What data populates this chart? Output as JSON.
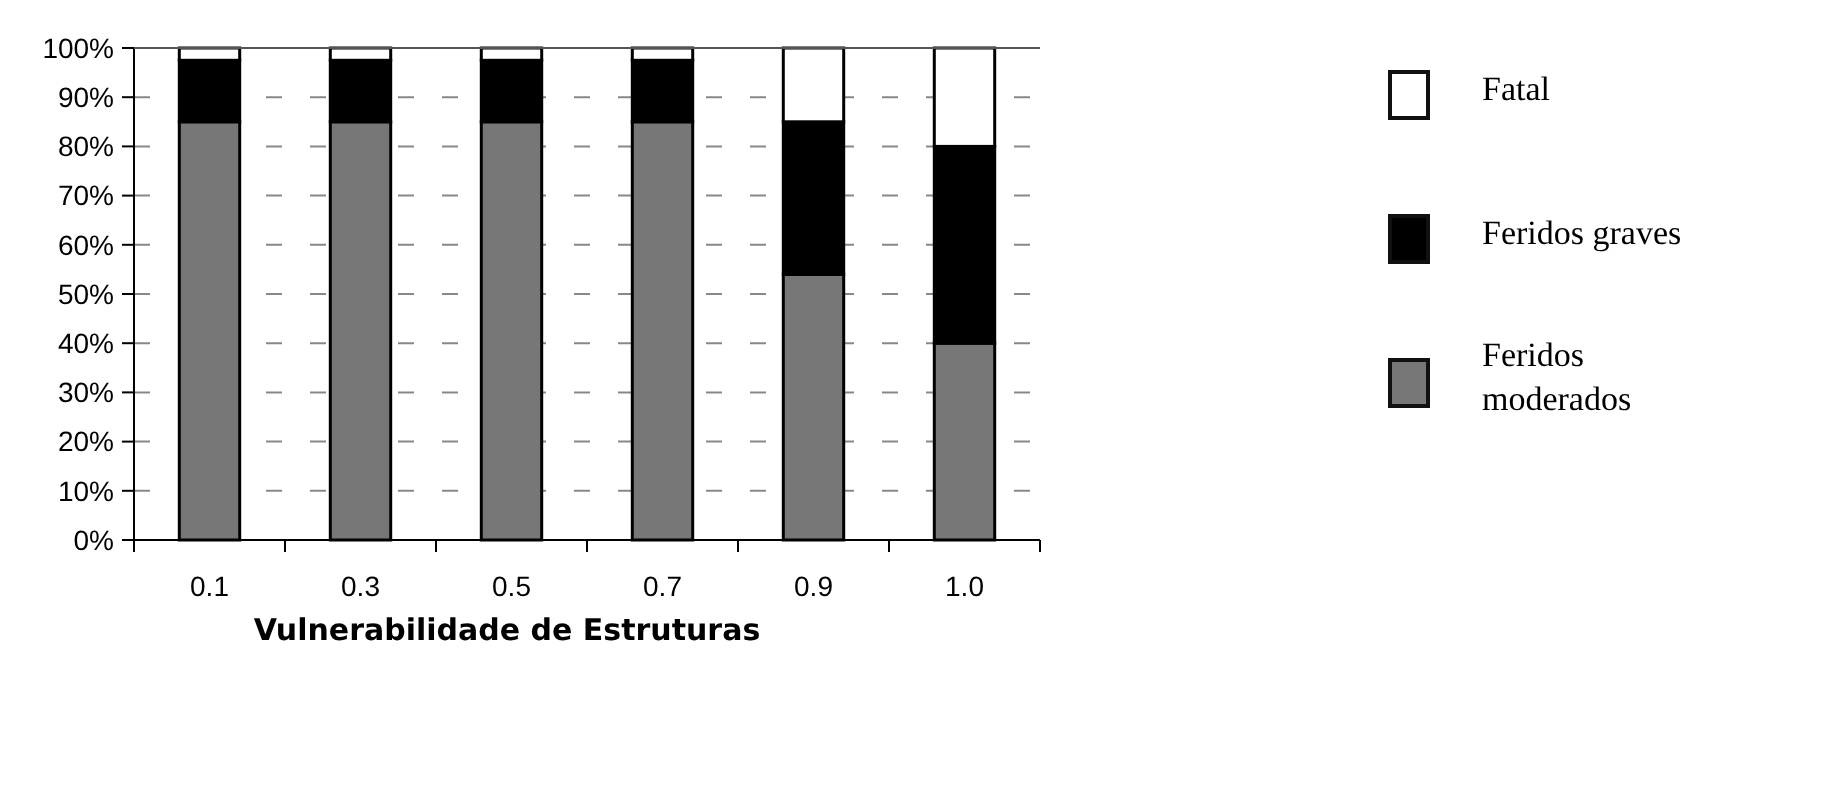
{
  "chart_data": {
    "type": "bar",
    "xlabel": "Vulnerabilidade de Estruturas",
    "categories": [
      "0.1",
      "0.3",
      "0.5",
      "0.7",
      "0.9",
      "1.0"
    ],
    "stacked": true,
    "series": [
      {
        "name": "Feridos moderados",
        "color": "#777777",
        "values": [
          85,
          85,
          85,
          85,
          54,
          40
        ]
      },
      {
        "name": "Feridos graves",
        "color": "#000000",
        "values": [
          12.5,
          12.5,
          12.5,
          12.5,
          31,
          40
        ]
      },
      {
        "name": "Fatal",
        "color": "#ffffff",
        "values": [
          2.5,
          2.5,
          2.5,
          2.5,
          15,
          20
        ]
      }
    ],
    "ylim": [
      0,
      100
    ],
    "yticks": [
      {
        "value": 0,
        "label": "0%"
      },
      {
        "value": 10,
        "label": "10%"
      },
      {
        "value": 20,
        "label": "20%"
      },
      {
        "value": 30,
        "label": "30%"
      },
      {
        "value": 40,
        "label": "40%"
      },
      {
        "value": 50,
        "label": "50%"
      },
      {
        "value": 60,
        "label": "60%"
      },
      {
        "value": 70,
        "label": "70%"
      },
      {
        "value": 80,
        "label": "80%"
      },
      {
        "value": 90,
        "label": "90%"
      },
      {
        "value": 100,
        "label": "100%"
      }
    ],
    "grid": "y",
    "legend": "right"
  }
}
